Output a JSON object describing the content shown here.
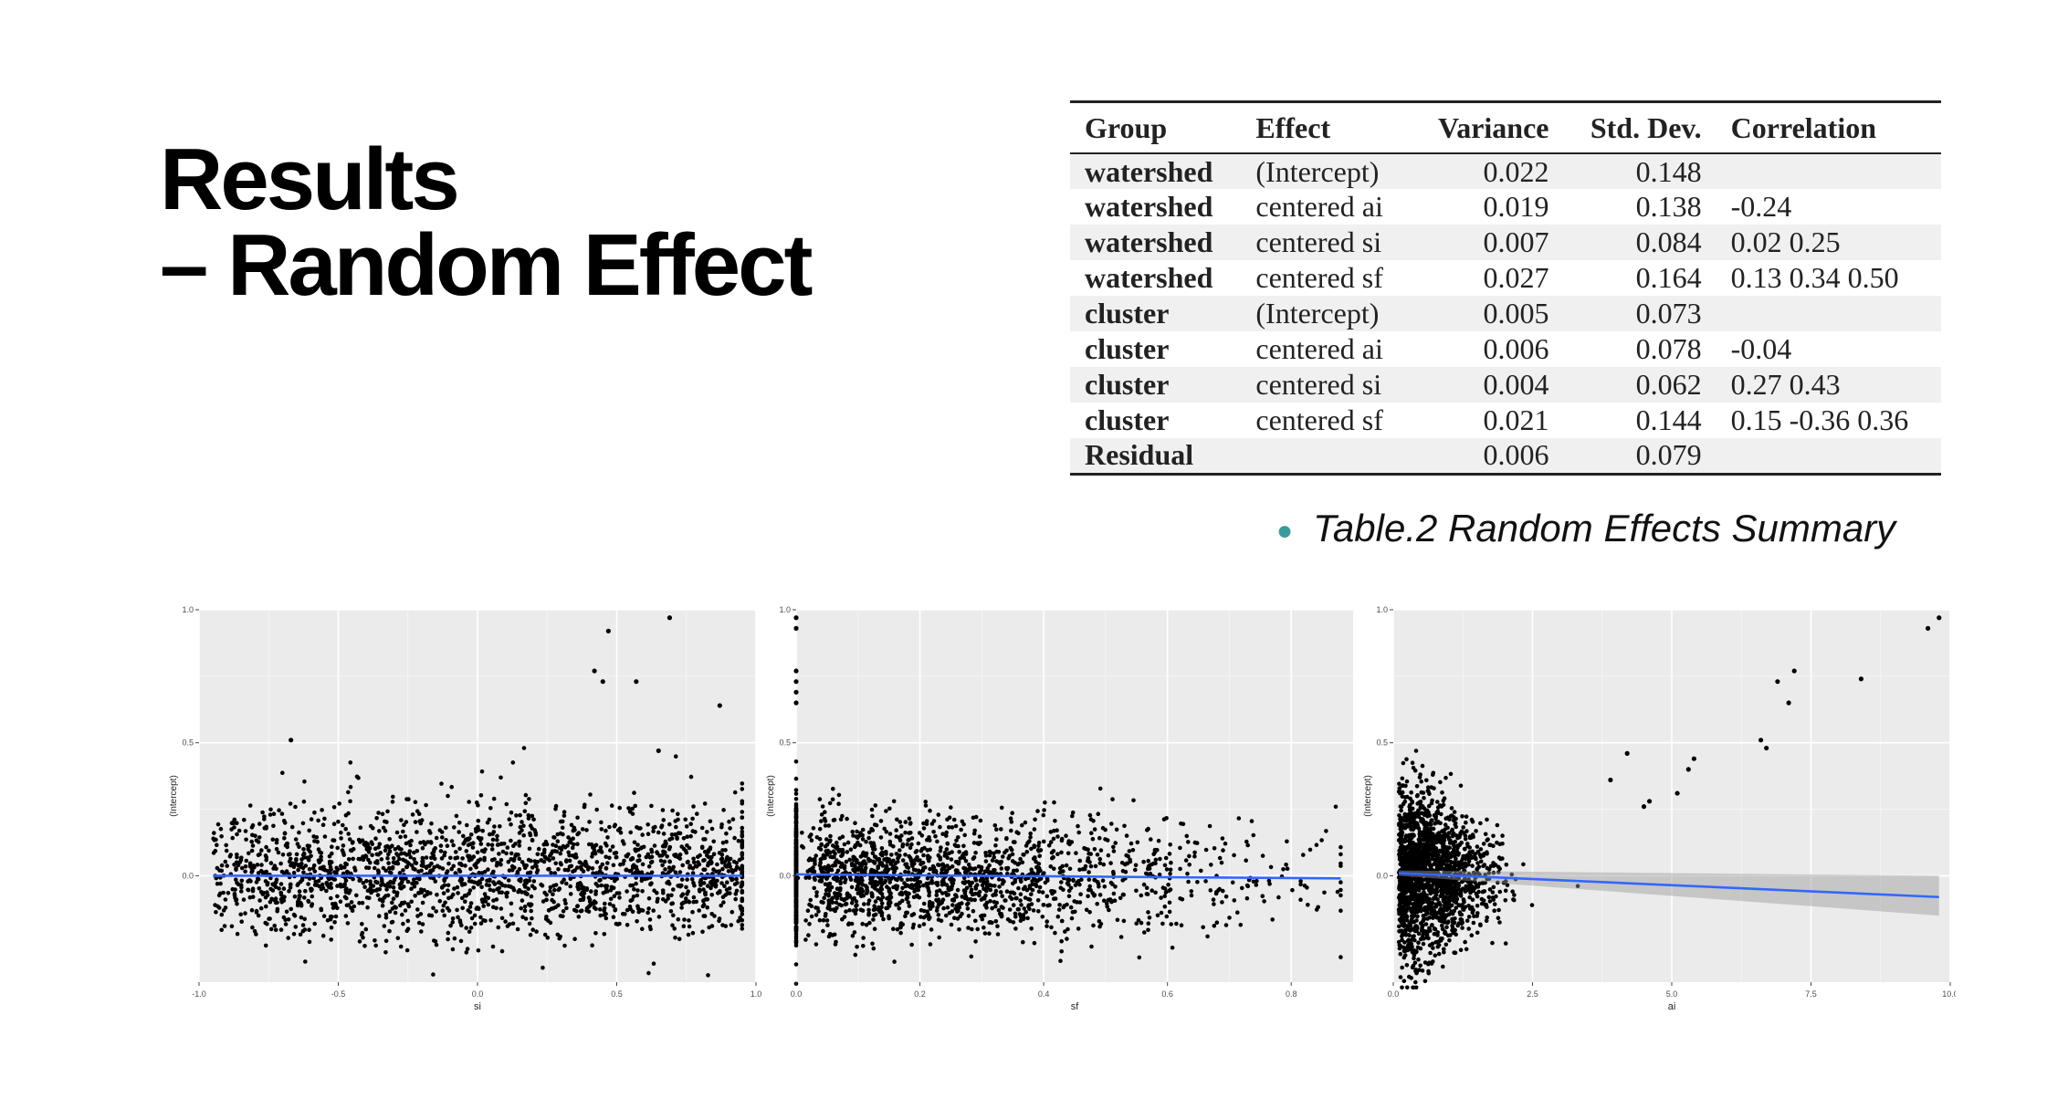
{
  "slide": {
    "title_line1": "Results",
    "title_line2": "– Random Effect",
    "caption": "Table.2 Random Effects Summary"
  },
  "table": {
    "headers": [
      "Group",
      "Effect",
      "Variance",
      "Std. Dev.",
      "Correlation"
    ],
    "rows": [
      [
        "watershed",
        "(Intercept)",
        "0.022",
        "0.148",
        ""
      ],
      [
        "watershed",
        "centered ai",
        "0.019",
        "0.138",
        "-0.24"
      ],
      [
        "watershed",
        "centered si",
        "0.007",
        "0.084",
        "0.02 0.25"
      ],
      [
        "watershed",
        "centered sf",
        "0.027",
        "0.164",
        "0.13 0.34 0.50"
      ],
      [
        "cluster",
        "(Intercept)",
        "0.005",
        "0.073",
        ""
      ],
      [
        "cluster",
        "centered ai",
        "0.006",
        "0.078",
        "-0.04"
      ],
      [
        "cluster",
        "centered si",
        "0.004",
        "0.062",
        "0.27 0.43"
      ],
      [
        "cluster",
        "centered sf",
        "0.021",
        "0.144",
        "0.15 -0.36 0.36"
      ],
      [
        "Residual",
        "",
        "0.006",
        "0.079",
        ""
      ]
    ]
  },
  "chart_data": [
    {
      "type": "scatter",
      "xlabel": "si",
      "ylabel": "(Intercept)",
      "xlim": [
        -1.0,
        1.0
      ],
      "ylim": [
        -0.4,
        1.0
      ],
      "xticks": [
        "-1.0",
        "-0.5",
        "0.0",
        "0.5",
        "1.0"
      ],
      "yticks": [
        "0.0",
        "0.5",
        "1.0"
      ],
      "trend": {
        "x": [
          -0.95,
          0.95
        ],
        "y": [
          0.0,
          0.0
        ],
        "color": "#3366ff"
      },
      "outliers": [
        [
          0.42,
          0.77
        ],
        [
          0.45,
          0.73
        ],
        [
          0.47,
          0.92
        ],
        [
          0.57,
          0.73
        ],
        [
          0.69,
          0.97
        ],
        [
          0.87,
          0.64
        ],
        [
          0.65,
          0.47
        ],
        [
          -0.67,
          0.51
        ]
      ],
      "point_count": 2000
    },
    {
      "type": "scatter",
      "xlabel": "sf",
      "ylabel": "(Intercept)",
      "xlim": [
        0.0,
        0.9
      ],
      "ylim": [
        -0.4,
        1.0
      ],
      "xticks": [
        "0.0",
        "0.2",
        "0.4",
        "0.6",
        "0.8"
      ],
      "yticks": [
        "0.0",
        "0.5",
        "1.0"
      ],
      "trend": {
        "x": [
          0.0,
          0.88
        ],
        "y": [
          0.005,
          -0.01
        ],
        "color": "#3366ff"
      },
      "outliers": [
        [
          0.0,
          0.97
        ],
        [
          0.0,
          0.93
        ],
        [
          0.0,
          0.77
        ],
        [
          0.0,
          0.73
        ],
        [
          0.0,
          0.69
        ],
        [
          0.0,
          0.65
        ]
      ],
      "point_count": 2000
    },
    {
      "type": "scatter",
      "xlabel": "ai",
      "ylabel": "(Intercept)",
      "xlim": [
        0.0,
        10.0
      ],
      "ylim": [
        -0.4,
        1.0
      ],
      "xticks": [
        "0.0",
        "2.5",
        "5.0",
        "7.5",
        "10.0"
      ],
      "yticks": [
        "0.0",
        "0.5",
        "1.0"
      ],
      "trend": {
        "x": [
          0.1,
          9.8
        ],
        "y": [
          0.01,
          -0.08
        ],
        "color": "#3366ff",
        "ribbon": [
          0.0,
          0.02,
          -0.15,
          0.0
        ]
      },
      "outliers": [
        [
          9.8,
          0.97
        ],
        [
          9.6,
          0.93
        ],
        [
          8.4,
          0.74
        ],
        [
          7.2,
          0.77
        ],
        [
          6.9,
          0.73
        ],
        [
          7.1,
          0.65
        ],
        [
          6.6,
          0.51
        ],
        [
          6.7,
          0.48
        ],
        [
          5.4,
          0.44
        ],
        [
          5.3,
          0.4
        ],
        [
          5.1,
          0.31
        ],
        [
          4.6,
          0.28
        ],
        [
          4.5,
          0.26
        ],
        [
          4.2,
          0.46
        ],
        [
          3.9,
          0.36
        ]
      ],
      "point_count": 1800
    }
  ]
}
